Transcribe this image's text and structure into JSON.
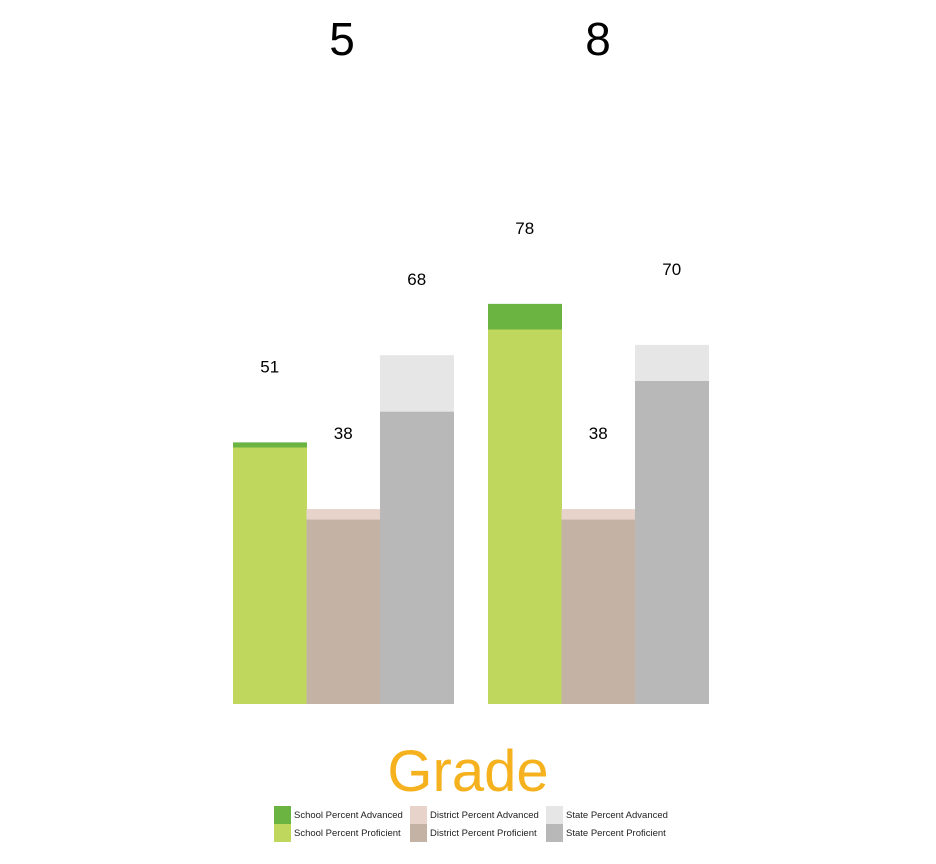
{
  "chart_data": {
    "type": "bar",
    "stacked": true,
    "categories": [
      "5",
      "8"
    ],
    "groups": [
      "School",
      "District",
      "State"
    ],
    "series": [
      {
        "name": "School Percent Proficient",
        "group": "School",
        "values": [
          50,
          73
        ],
        "color": "#bfd75c"
      },
      {
        "name": "School Percent Advanced",
        "group": "School",
        "values": [
          1,
          5
        ],
        "color": "#6cb442"
      },
      {
        "name": "District Percent Proficient",
        "group": "District",
        "values": [
          36,
          36
        ],
        "color": "#c4b3a5"
      },
      {
        "name": "District Percent Advanced",
        "group": "District",
        "values": [
          2,
          2
        ],
        "color": "#e8d3cb"
      },
      {
        "name": "State Percent Proficient",
        "group": "State",
        "values": [
          57,
          63
        ],
        "color": "#b8b8b8"
      },
      {
        "name": "State Percent Advanced",
        "group": "State",
        "values": [
          11,
          7
        ],
        "color": "#e6e6e6"
      }
    ],
    "totals": {
      "School": [
        51,
        78
      ],
      "District": [
        38,
        38
      ],
      "State": [
        68,
        70
      ]
    },
    "xlabel": "Grade",
    "ylabel": "",
    "ylim": [
      0,
      100
    ],
    "grid": false,
    "legend_position": "bottom"
  },
  "legend": [
    {
      "label": "School Percent Advanced",
      "color": "#6cb442"
    },
    {
      "label": "District Percent Advanced",
      "color": "#e8d3cb"
    },
    {
      "label": "State Percent Advanced",
      "color": "#e6e6e6"
    },
    {
      "label": "School Percent Proficient",
      "color": "#bfd75c"
    },
    {
      "label": "District Percent Proficient",
      "color": "#c4b3a5"
    },
    {
      "label": "State Percent Proficient",
      "color": "#b8b8b8"
    }
  ],
  "colors": {
    "xlabel": "#f5b21e"
  }
}
